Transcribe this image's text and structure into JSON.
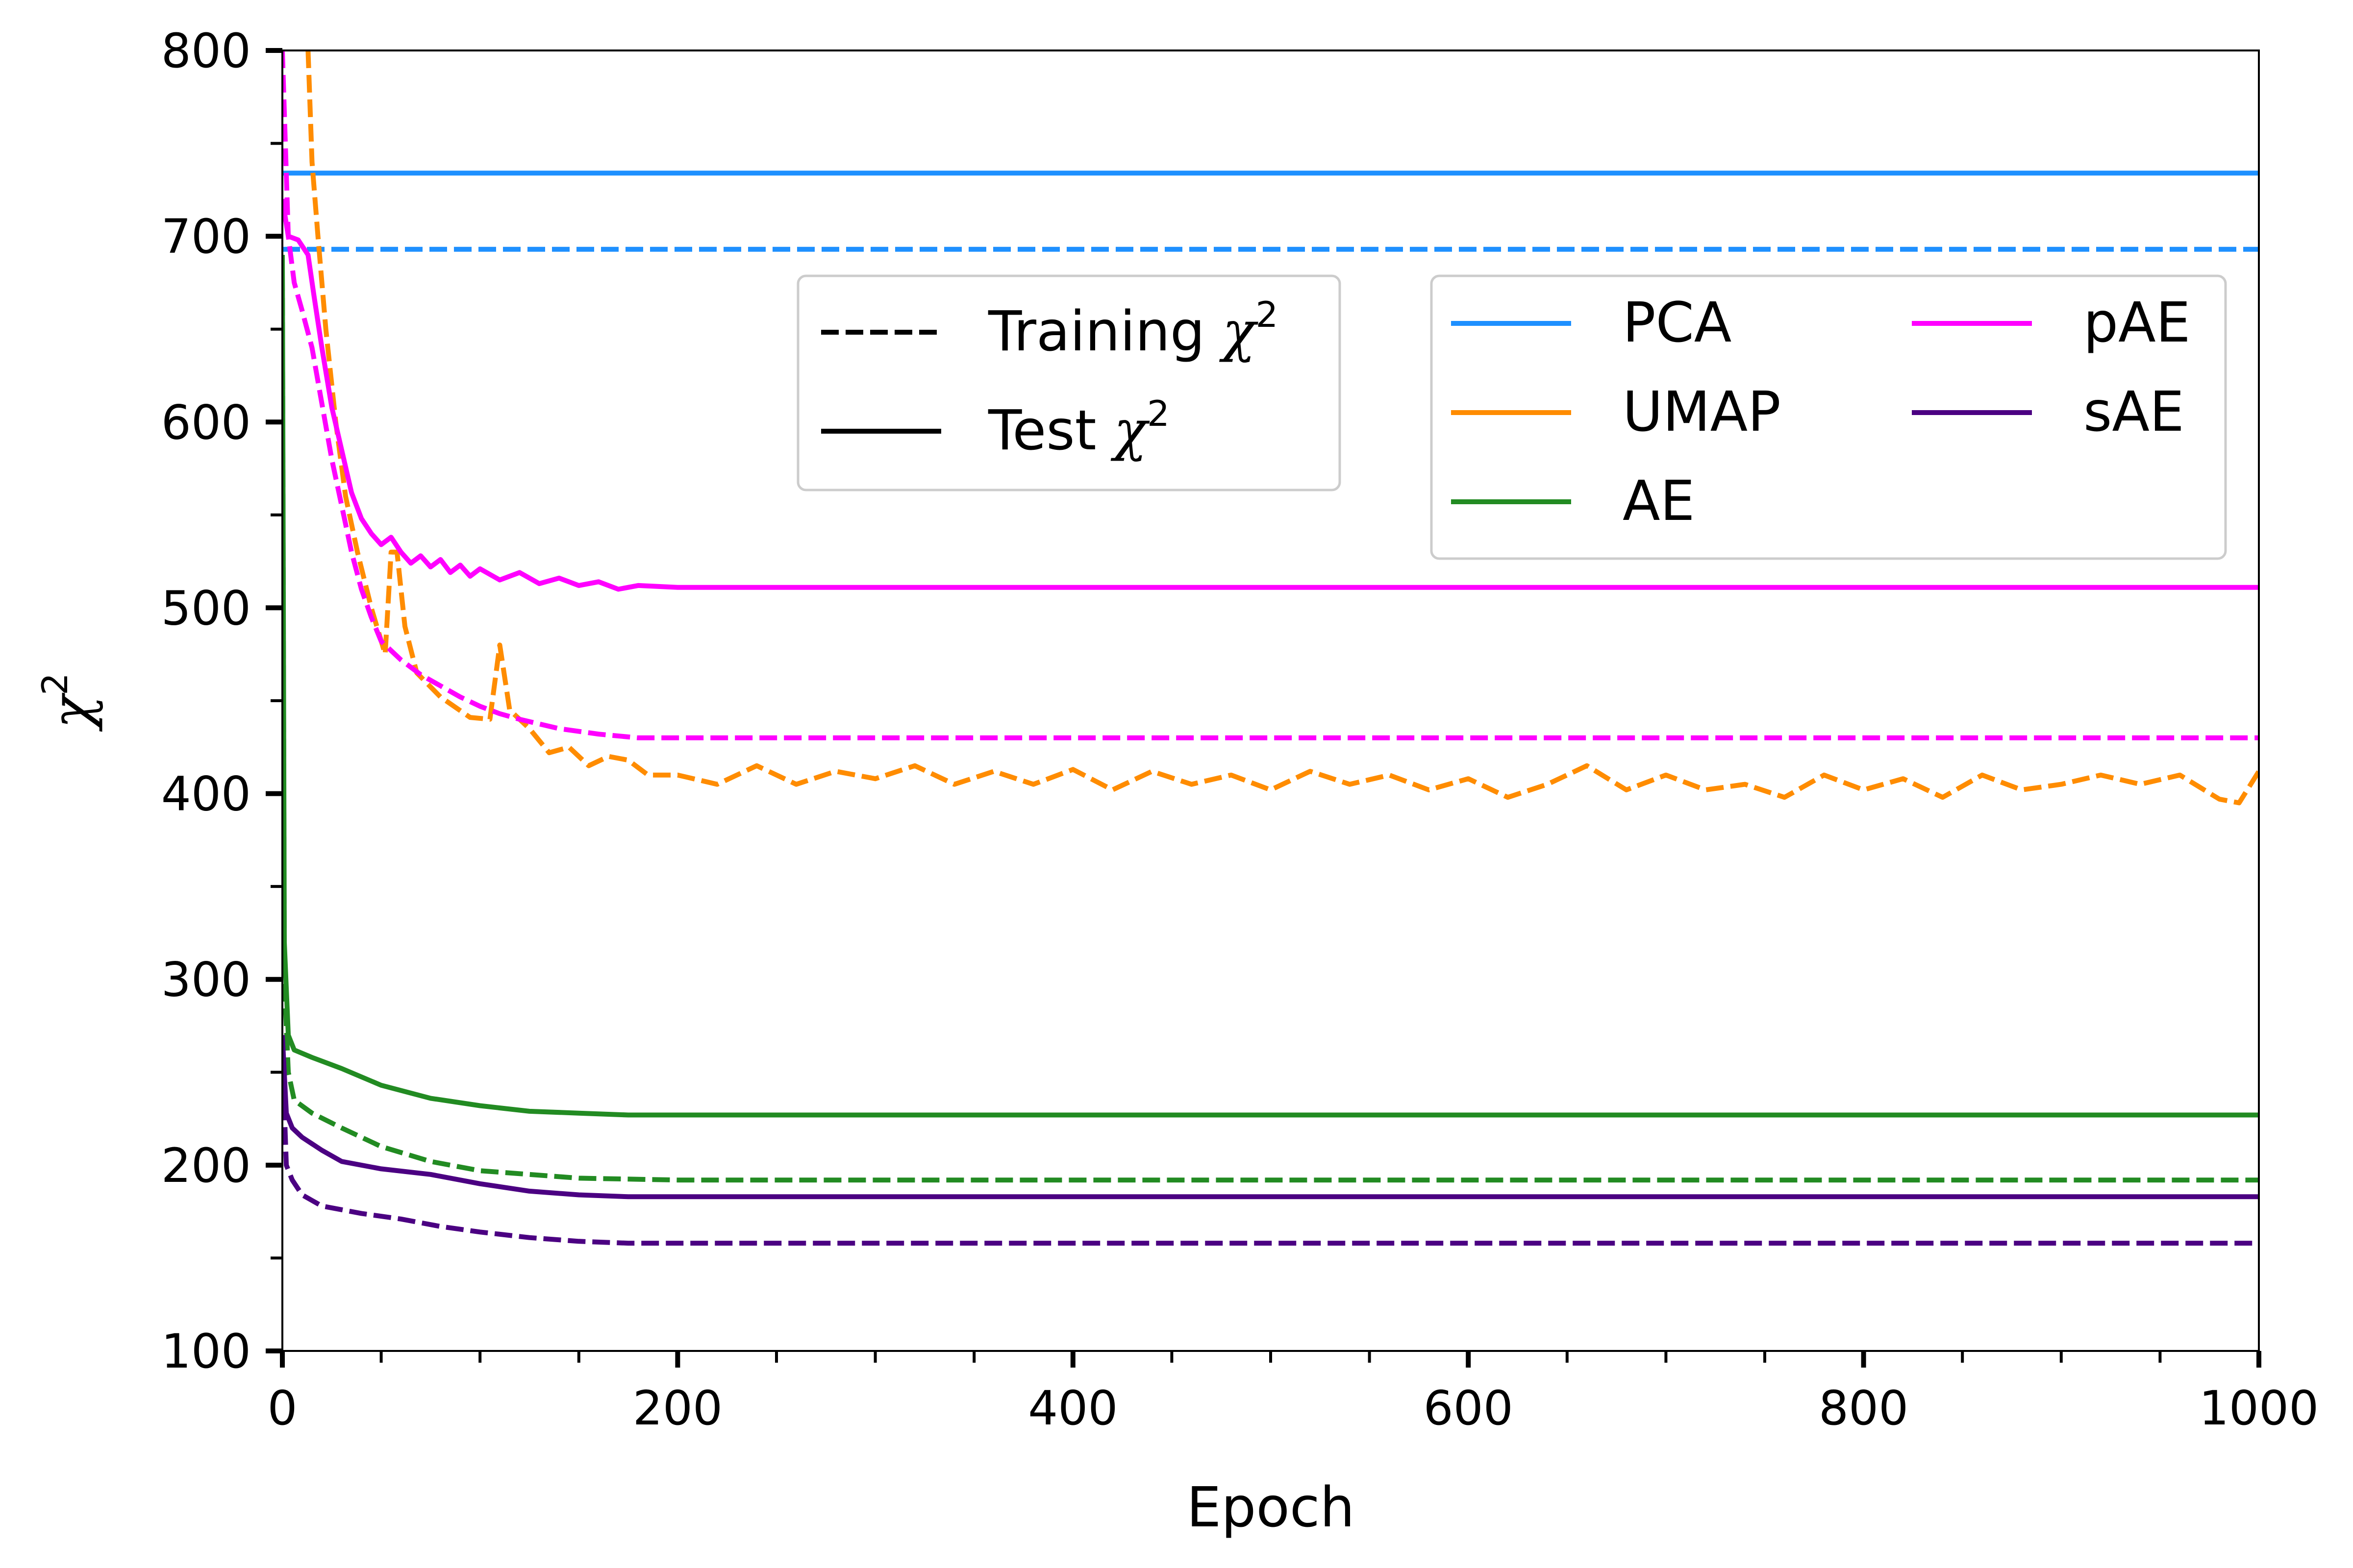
{
  "chart_data": {
    "type": "line",
    "xlabel": "Epoch",
    "ylabel": "χ",
    "ylabel_sup": "2",
    "xlim": [
      0,
      1000
    ],
    "ylim": [
      100,
      800
    ],
    "xticks": [
      0,
      200,
      400,
      600,
      800,
      1000
    ],
    "yticks": [
      100,
      200,
      300,
      400,
      500,
      600,
      700,
      800
    ],
    "x_minor_step": 50,
    "y_minor_step": 50,
    "grid": false,
    "style_legend": {
      "placement": "upper-center",
      "entries": [
        {
          "label": "Training ",
          "sym": "χ",
          "sup": "2",
          "style": "dashed"
        },
        {
          "label": "Test ",
          "sym": "χ",
          "sup": "2",
          "style": "solid"
        }
      ]
    },
    "series_legend": {
      "placement": "upper-right",
      "entries": [
        {
          "name": "PCA",
          "color": "#1e90ff"
        },
        {
          "name": "UMAP",
          "color": "#ff8c00"
        },
        {
          "name": "AE",
          "color": "#228b22"
        },
        {
          "name": "pAE",
          "color": "#ff00ff"
        },
        {
          "name": "sAE",
          "color": "#4b0082"
        }
      ]
    },
    "series": [
      {
        "key": "pca-train",
        "model": "PCA",
        "split": "training",
        "color": "#1e90ff",
        "points": [
          [
            0,
            693
          ],
          [
            1000,
            693
          ]
        ]
      },
      {
        "key": "pca-test",
        "model": "PCA",
        "split": "test",
        "color": "#1e90ff",
        "points": [
          [
            0,
            734
          ],
          [
            1000,
            734
          ]
        ]
      },
      {
        "key": "umap-train",
        "model": "UMAP",
        "split": "training",
        "color": "#ff8c00",
        "points": [
          [
            13,
            800
          ],
          [
            15,
            740
          ],
          [
            18,
            700
          ],
          [
            22,
            650
          ],
          [
            27,
            600
          ],
          [
            32,
            560
          ],
          [
            38,
            530
          ],
          [
            45,
            500
          ],
          [
            52,
            475
          ],
          [
            55,
            530
          ],
          [
            58,
            530
          ],
          [
            62,
            490
          ],
          [
            68,
            465
          ],
          [
            80,
            452
          ],
          [
            95,
            441
          ],
          [
            105,
            440
          ],
          [
            110,
            480
          ],
          [
            115,
            445
          ],
          [
            125,
            435
          ],
          [
            135,
            422
          ],
          [
            145,
            425
          ],
          [
            155,
            415
          ],
          [
            165,
            420
          ],
          [
            175,
            418
          ],
          [
            185,
            410
          ],
          [
            200,
            410
          ],
          [
            220,
            405
          ],
          [
            240,
            415
          ],
          [
            260,
            405
          ],
          [
            280,
            412
          ],
          [
            300,
            408
          ],
          [
            320,
            415
          ],
          [
            340,
            405
          ],
          [
            360,
            412
          ],
          [
            380,
            405
          ],
          [
            400,
            413
          ],
          [
            420,
            402
          ],
          [
            440,
            412
          ],
          [
            460,
            405
          ],
          [
            480,
            410
          ],
          [
            500,
            402
          ],
          [
            520,
            412
          ],
          [
            540,
            405
          ],
          [
            560,
            410
          ],
          [
            580,
            402
          ],
          [
            600,
            408
          ],
          [
            620,
            398
          ],
          [
            640,
            405
          ],
          [
            660,
            415
          ],
          [
            680,
            402
          ],
          [
            700,
            410
          ],
          [
            720,
            402
          ],
          [
            740,
            405
          ],
          [
            760,
            398
          ],
          [
            780,
            410
          ],
          [
            800,
            402
          ],
          [
            820,
            408
          ],
          [
            840,
            398
          ],
          [
            860,
            410
          ],
          [
            880,
            402
          ],
          [
            900,
            405
          ],
          [
            920,
            410
          ],
          [
            940,
            405
          ],
          [
            960,
            410
          ],
          [
            980,
            397
          ],
          [
            990,
            395
          ],
          [
            1000,
            412
          ]
        ]
      },
      {
        "key": "pae-train",
        "model": "pAE",
        "split": "training",
        "color": "#ff00ff",
        "points": [
          [
            0,
            800
          ],
          [
            3,
            700
          ],
          [
            6,
            675
          ],
          [
            10,
            660
          ],
          [
            15,
            640
          ],
          [
            20,
            610
          ],
          [
            25,
            580
          ],
          [
            30,
            555
          ],
          [
            35,
            530
          ],
          [
            40,
            510
          ],
          [
            45,
            495
          ],
          [
            50,
            482
          ],
          [
            60,
            472
          ],
          [
            70,
            464
          ],
          [
            80,
            458
          ],
          [
            90,
            452
          ],
          [
            100,
            447
          ],
          [
            110,
            443
          ],
          [
            120,
            440
          ],
          [
            140,
            435
          ],
          [
            160,
            432
          ],
          [
            180,
            430
          ],
          [
            200,
            430
          ],
          [
            1000,
            430
          ]
        ]
      },
      {
        "key": "pae-test",
        "model": "pAE",
        "split": "test",
        "color": "#ff00ff",
        "points": [
          [
            0,
            720
          ],
          [
            3,
            700
          ],
          [
            8,
            698
          ],
          [
            13,
            690
          ],
          [
            16,
            668
          ],
          [
            20,
            640
          ],
          [
            25,
            608
          ],
          [
            30,
            585
          ],
          [
            35,
            562
          ],
          [
            40,
            548
          ],
          [
            45,
            540
          ],
          [
            50,
            534
          ],
          [
            55,
            538
          ],
          [
            60,
            530
          ],
          [
            65,
            524
          ],
          [
            70,
            528
          ],
          [
            75,
            522
          ],
          [
            80,
            526
          ],
          [
            85,
            519
          ],
          [
            90,
            523
          ],
          [
            95,
            517
          ],
          [
            100,
            521
          ],
          [
            110,
            515
          ],
          [
            120,
            519
          ],
          [
            130,
            513
          ],
          [
            140,
            516
          ],
          [
            150,
            512
          ],
          [
            160,
            514
          ],
          [
            170,
            510
          ],
          [
            180,
            512
          ],
          [
            200,
            511
          ],
          [
            1000,
            511
          ]
        ]
      },
      {
        "key": "ae-train",
        "model": "AE",
        "split": "training",
        "color": "#228b22",
        "points": [
          [
            0,
            680
          ],
          [
            1,
            300
          ],
          [
            3,
            250
          ],
          [
            6,
            235
          ],
          [
            15,
            228
          ],
          [
            30,
            220
          ],
          [
            50,
            210
          ],
          [
            75,
            202
          ],
          [
            100,
            197
          ],
          [
            150,
            193
          ],
          [
            200,
            192
          ],
          [
            1000,
            192
          ]
        ]
      },
      {
        "key": "ae-test",
        "model": "AE",
        "split": "test",
        "color": "#228b22",
        "points": [
          [
            0,
            690
          ],
          [
            1,
            320
          ],
          [
            3,
            270
          ],
          [
            6,
            262
          ],
          [
            15,
            258
          ],
          [
            30,
            252
          ],
          [
            50,
            243
          ],
          [
            75,
            236
          ],
          [
            100,
            232
          ],
          [
            125,
            229
          ],
          [
            150,
            228
          ],
          [
            175,
            227
          ],
          [
            200,
            227
          ],
          [
            1000,
            227
          ]
        ]
      },
      {
        "key": "sae-train",
        "model": "sAE",
        "split": "training",
        "color": "#4b0082",
        "points": [
          [
            0,
            260
          ],
          [
            2,
            200
          ],
          [
            5,
            192
          ],
          [
            10,
            184
          ],
          [
            20,
            178
          ],
          [
            40,
            174
          ],
          [
            60,
            171
          ],
          [
            80,
            167
          ],
          [
            100,
            164
          ],
          [
            125,
            161
          ],
          [
            150,
            159
          ],
          [
            175,
            158
          ],
          [
            200,
            158
          ],
          [
            1000,
            158
          ]
        ]
      },
      {
        "key": "sae-test",
        "model": "sAE",
        "split": "test",
        "color": "#4b0082",
        "points": [
          [
            0,
            270
          ],
          [
            2,
            228
          ],
          [
            5,
            220
          ],
          [
            10,
            215
          ],
          [
            20,
            208
          ],
          [
            30,
            202
          ],
          [
            50,
            198
          ],
          [
            75,
            195
          ],
          [
            100,
            190
          ],
          [
            125,
            186
          ],
          [
            150,
            184
          ],
          [
            175,
            183
          ],
          [
            200,
            183
          ],
          [
            1000,
            183
          ]
        ]
      }
    ]
  }
}
